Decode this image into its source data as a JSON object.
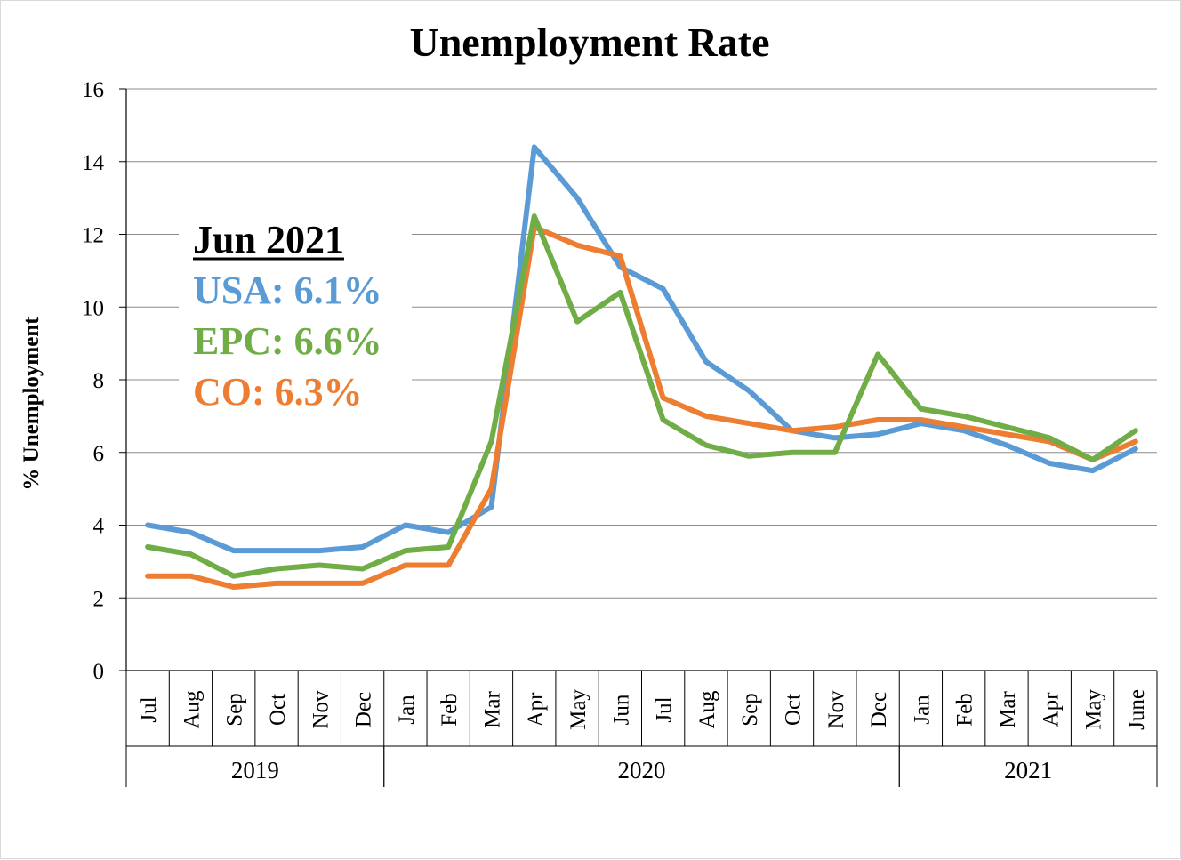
{
  "chart_data": {
    "type": "line",
    "title": "Unemployment Rate",
    "xlabel": "",
    "ylabel": "% Unemployment",
    "ylim": [
      0,
      16
    ],
    "yticks": [
      0,
      2,
      4,
      6,
      8,
      10,
      12,
      14,
      16
    ],
    "grid": true,
    "categories": [
      "Jul",
      "Aug",
      "Sep",
      "Oct",
      "Nov",
      "Dec",
      "Jan",
      "Feb",
      "Mar",
      "Apr",
      "May",
      "Jun",
      "Jul",
      "Aug",
      "Sep",
      "Oct",
      "Nov",
      "Dec",
      "Jan",
      "Feb",
      "Mar",
      "Apr",
      "May",
      "June"
    ],
    "groups": [
      {
        "label": "2019",
        "count": 6
      },
      {
        "label": "2020",
        "count": 12
      },
      {
        "label": "2021",
        "count": 6
      }
    ],
    "series": [
      {
        "name": "USA",
        "color": "#5b9bd5",
        "values": [
          4.0,
          3.8,
          3.3,
          3.3,
          3.3,
          3.4,
          4.0,
          3.8,
          4.5,
          14.4,
          13.0,
          11.1,
          10.5,
          8.5,
          7.7,
          6.6,
          6.4,
          6.5,
          6.8,
          6.6,
          6.2,
          5.7,
          5.5,
          6.1
        ]
      },
      {
        "name": "CO",
        "color": "#ed7d31",
        "values": [
          2.6,
          2.6,
          2.3,
          2.4,
          2.4,
          2.4,
          2.9,
          2.9,
          5.0,
          12.2,
          11.7,
          11.4,
          7.5,
          7.0,
          6.8,
          6.6,
          6.7,
          6.9,
          6.9,
          6.7,
          6.5,
          6.3,
          5.8,
          6.3
        ]
      },
      {
        "name": "EPC",
        "color": "#70ad47",
        "values": [
          3.4,
          3.2,
          2.6,
          2.8,
          2.9,
          2.8,
          3.3,
          3.4,
          6.3,
          12.5,
          9.6,
          10.4,
          6.9,
          6.2,
          5.9,
          6.0,
          6.0,
          8.7,
          7.2,
          7.0,
          6.7,
          6.4,
          5.8,
          6.6
        ]
      }
    ],
    "annotation": {
      "heading": "Jun 2021",
      "lines": [
        {
          "text": "USA: 6.1%",
          "color": "#5b9bd5"
        },
        {
          "text": "EPC: 6.6%",
          "color": "#70ad47"
        },
        {
          "text": "CO: 6.3%",
          "color": "#ed7d31"
        }
      ]
    },
    "legend": "none"
  }
}
